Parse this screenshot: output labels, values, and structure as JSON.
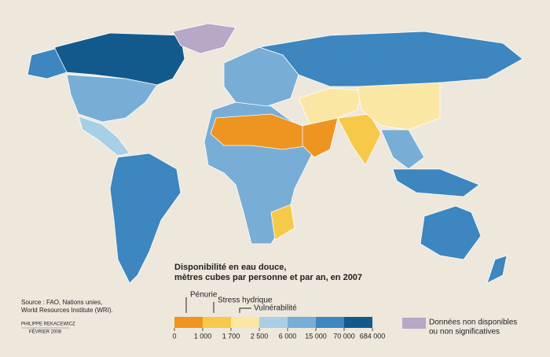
{
  "legend": {
    "title": [
      "Disponibilité en eau douce,",
      "mètres cubes par personne et par an, en 2007"
    ],
    "colors": [
      "#ee9420",
      "#f7c94b",
      "#fbe7a4",
      "#a8cfe6",
      "#78aed6",
      "#3d86bf",
      "#135a8c"
    ],
    "thresholds": [
      "0",
      "1 000",
      "1 700",
      "2 500",
      "6 000",
      "15 000",
      "70 000",
      "684 000"
    ],
    "annotations": [
      "Pénurie",
      "Stress hydrique",
      "Vulnérabilité"
    ],
    "no_data": {
      "color": "#b6a8c6",
      "label": [
        "Données non disponibles",
        "ou non significatives"
      ]
    }
  },
  "source": [
    "Source : FAO, Nations unies,",
    "World Resources Institute (WRI)."
  ],
  "credit": [
    "PHILIPPE REKACEWICZ",
    "FÉVRIER 2008"
  ]
}
